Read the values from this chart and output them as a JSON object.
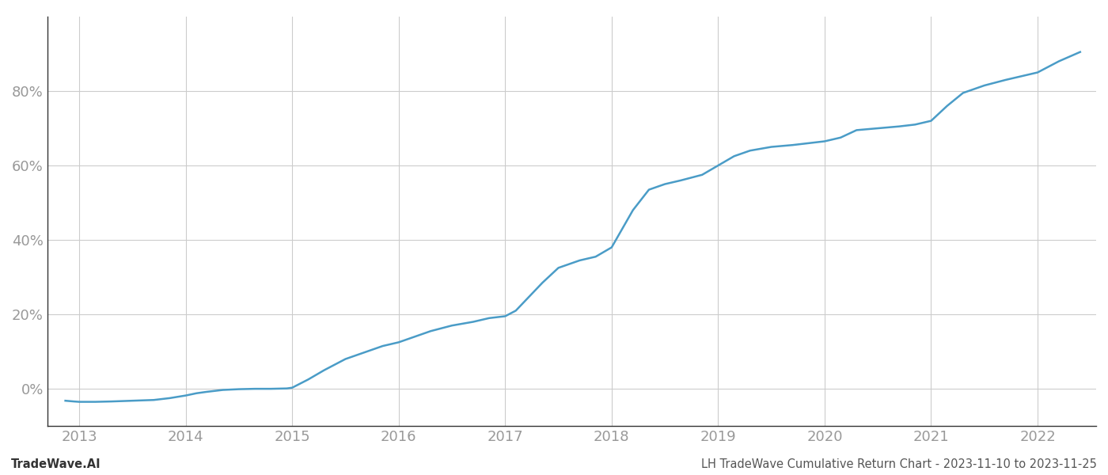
{
  "title": "",
  "footer_left": "TradeWave.AI",
  "footer_right": "LH TradeWave Cumulative Return Chart - 2023-11-10 to 2023-11-25",
  "line_color": "#4a9cc7",
  "background_color": "#ffffff",
  "grid_color": "#cccccc",
  "x_years": [
    2013,
    2014,
    2015,
    2016,
    2017,
    2018,
    2019,
    2020,
    2021,
    2022
  ],
  "data_x": [
    2012.87,
    2012.95,
    2013.0,
    2013.15,
    2013.3,
    2013.5,
    2013.7,
    2013.85,
    2014.0,
    2014.1,
    2014.2,
    2014.35,
    2014.5,
    2014.65,
    2014.8,
    2014.95,
    2015.0,
    2015.15,
    2015.3,
    2015.5,
    2015.7,
    2015.85,
    2016.0,
    2016.15,
    2016.3,
    2016.5,
    2016.7,
    2016.85,
    2017.0,
    2017.1,
    2017.2,
    2017.35,
    2017.5,
    2017.7,
    2017.85,
    2018.0,
    2018.1,
    2018.2,
    2018.35,
    2018.5,
    2018.65,
    2018.85,
    2019.0,
    2019.15,
    2019.3,
    2019.5,
    2019.7,
    2019.85,
    2020.0,
    2020.15,
    2020.3,
    2020.5,
    2020.7,
    2020.85,
    2021.0,
    2021.15,
    2021.3,
    2021.5,
    2021.7,
    2021.85,
    2022.0,
    2022.2,
    2022.4
  ],
  "data_y": [
    -3.2,
    -3.4,
    -3.5,
    -3.5,
    -3.4,
    -3.2,
    -3.0,
    -2.5,
    -1.8,
    -1.2,
    -0.8,
    -0.3,
    -0.1,
    0.0,
    0.0,
    0.1,
    0.3,
    2.5,
    5.0,
    8.0,
    10.0,
    11.5,
    12.5,
    14.0,
    15.5,
    17.0,
    18.0,
    19.0,
    19.5,
    21.0,
    24.0,
    28.5,
    32.5,
    34.5,
    35.5,
    38.0,
    43.0,
    48.0,
    53.5,
    55.0,
    56.0,
    57.5,
    60.0,
    62.5,
    64.0,
    65.0,
    65.5,
    66.0,
    66.5,
    67.5,
    69.5,
    70.0,
    70.5,
    71.0,
    72.0,
    76.0,
    79.5,
    81.5,
    83.0,
    84.0,
    85.0,
    88.0,
    90.5
  ],
  "ylim": [
    -10,
    100
  ],
  "xlim": [
    2012.7,
    2022.55
  ],
  "yticks": [
    0,
    20,
    40,
    60,
    80
  ],
  "tick_color": "#999999",
  "axis_color": "#333333",
  "footer_fontsize": 10.5,
  "tick_fontsize": 13
}
